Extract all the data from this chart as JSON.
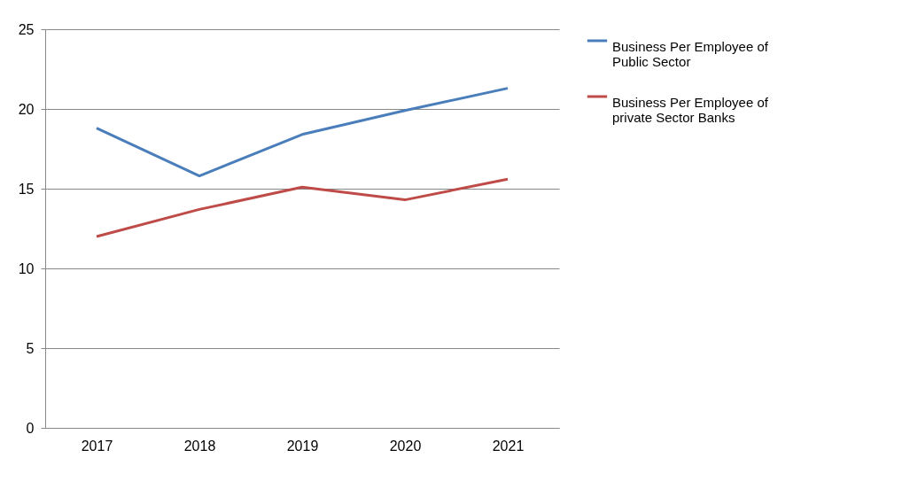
{
  "chart_data": {
    "type": "line",
    "categories": [
      "2017",
      "2018",
      "2019",
      "2020",
      "2021"
    ],
    "series": [
      {
        "name": "Business Per Employee of Public Sector",
        "color": "#4a7ebb",
        "values": [
          18.8,
          15.8,
          18.4,
          19.9,
          21.3
        ]
      },
      {
        "name": "Business Per Employee of private Sector Banks",
        "color": "#be4b48",
        "values": [
          12.0,
          13.7,
          15.1,
          14.3,
          15.6
        ]
      }
    ],
    "ylim": [
      0,
      25
    ],
    "yticks": [
      0,
      5,
      10,
      15,
      20,
      25
    ],
    "grid": "y",
    "legend": "right",
    "marker": "none",
    "line_style": "solid"
  }
}
